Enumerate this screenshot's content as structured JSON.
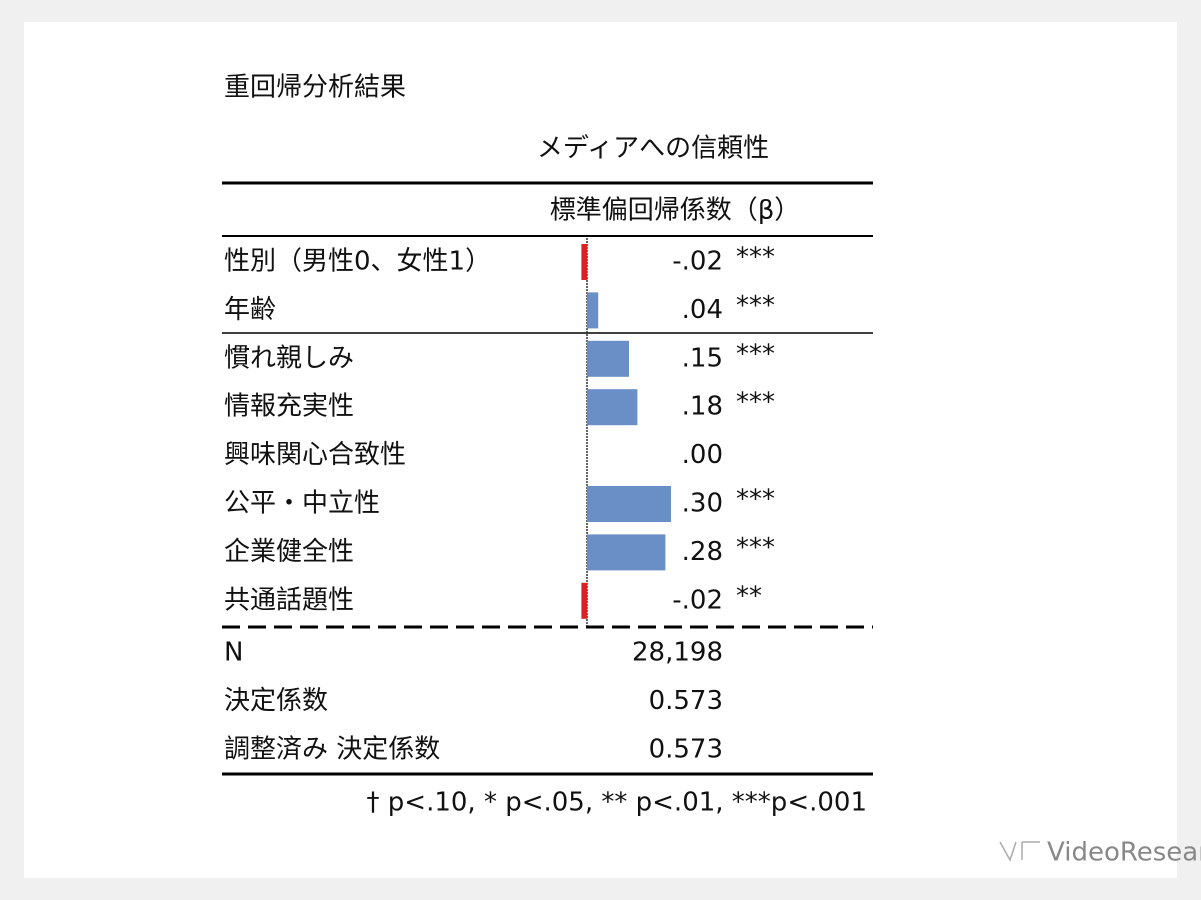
{
  "title": "重回帰分析結果",
  "chart_data": {
    "type": "bar",
    "orientation": "horizontal",
    "title": "メディアへの信頼性",
    "value_header": "標準偏回帰係数（β）",
    "categories": [
      "性別（男性0、女性1）",
      "年齢",
      "慣れ親しみ",
      "情報充実性",
      "興味関心合致性",
      "公平・中立性",
      "企業健全性",
      "共通話題性"
    ],
    "values": [
      -0.02,
      0.04,
      0.15,
      0.18,
      0.0,
      0.3,
      0.28,
      -0.02
    ],
    "value_labels": [
      "-.02",
      ".04",
      ".15",
      ".18",
      ".00",
      ".30",
      ".28",
      "-.02"
    ],
    "significance": [
      "***",
      "***",
      "***",
      "***",
      null,
      "***",
      "***",
      "**"
    ],
    "color": "#6a8fc7",
    "negative_color": "#e02020"
  },
  "stats": {
    "rows": [
      [
        "N",
        "28,198"
      ],
      [
        "決定係数",
        "0.573"
      ],
      [
        "調整済み 決定係数",
        "0.573"
      ]
    ]
  },
  "note": "† p<.10, * p<.05, ** p<.01, ***p<.001",
  "logo": "VideoResearch"
}
